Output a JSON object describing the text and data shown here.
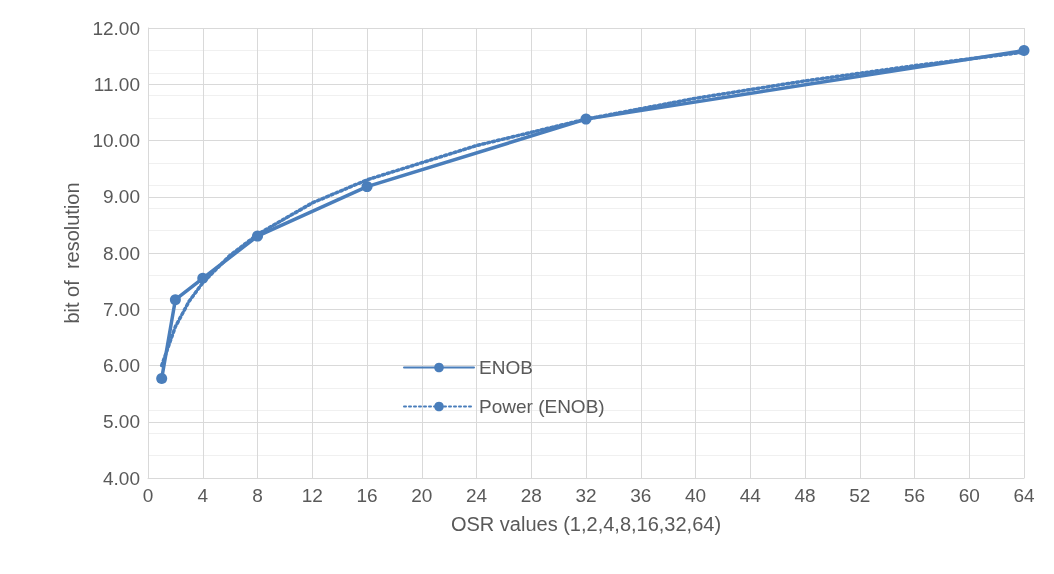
{
  "chart_data": {
    "type": "line",
    "xlabel": "OSR values (1,2,4,8,16,32,64)",
    "ylabel": "bit of  resolution",
    "xlim": [
      0,
      64
    ],
    "xticks": [
      0,
      4,
      8,
      12,
      16,
      20,
      24,
      28,
      32,
      36,
      40,
      44,
      48,
      52,
      56,
      60,
      64
    ],
    "ylim": [
      4,
      12
    ],
    "yticks": [
      {
        "value": 4,
        "label": "4.00"
      },
      {
        "value": 5,
        "label": "5.00"
      },
      {
        "value": 6,
        "label": "6.00"
      },
      {
        "value": 7,
        "label": "7.00"
      },
      {
        "value": 8,
        "label": "8.00"
      },
      {
        "value": 9,
        "label": "9.00"
      },
      {
        "value": 10,
        "label": "10.00"
      },
      {
        "value": 11,
        "label": "11.00"
      },
      {
        "value": 12,
        "label": "12.00"
      }
    ],
    "grid": true,
    "legend": "left",
    "series": [
      {
        "name": "ENOB",
        "color": "#4a7ebb",
        "x": [
          1,
          2,
          4,
          8,
          16,
          32,
          64
        ],
        "values": [
          5.77,
          7.17,
          7.55,
          8.3,
          9.18,
          10.38,
          11.6
        ],
        "marker": "circle",
        "line_style": "solid"
      },
      {
        "name": "Power (ENOB)",
        "color": "#4a7ebb",
        "x": [
          1,
          2,
          3,
          4,
          6,
          8,
          12,
          16,
          24,
          32,
          40,
          48,
          56,
          64
        ],
        "values": [
          6.0,
          6.69,
          7.14,
          7.47,
          7.96,
          8.33,
          8.89,
          9.3,
          9.91,
          10.38,
          10.75,
          11.06,
          11.33,
          11.57
        ],
        "marker": "none",
        "line_style": "dotted"
      }
    ]
  }
}
